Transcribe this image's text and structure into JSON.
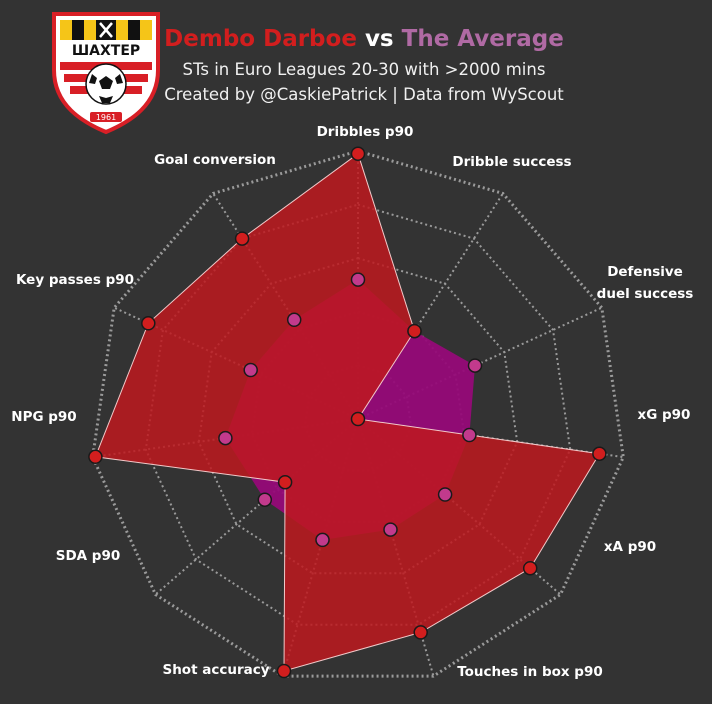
{
  "header": {
    "player_name": "Dembo Darboe",
    "vs_label": "vs",
    "comparison_name": "The Average",
    "subtitle": "STs in Euro Leagues 20-30 with >2000 mins",
    "credit": "Created by @CaskiePatrick | Data from WyScout"
  },
  "logo": {
    "name": "ШАХТЕР",
    "year": "1961"
  },
  "colors": {
    "background": "#333333",
    "player": "#d21e1e",
    "average": "#c23a8c",
    "player_fill": "rgba(190,25,30,0.85)",
    "average_fill": "rgba(150,10,120,0.95)",
    "grid": "#9a9a9a"
  },
  "chart_data": {
    "type": "radar",
    "title": "Dembo Darboe vs The Average",
    "axes": [
      "Dribbles p90",
      "Dribble success",
      "Defensive\nduel success",
      "xG p90",
      "xA p90",
      "Touches in box p90",
      "Shot accuracy",
      "SDA p90",
      "NPG p90",
      "Key passes p90",
      "Goal conversion"
    ],
    "range": [
      0,
      1
    ],
    "rings": 5,
    "grid": true,
    "series": [
      {
        "name": "Dembo Darboe",
        "values": [
          0.99,
          0.39,
          0.0,
          0.91,
          0.85,
          0.83,
          0.98,
          0.36,
          0.99,
          0.86,
          0.8
        ]
      },
      {
        "name": "The Average",
        "values": [
          0.52,
          0.39,
          0.48,
          0.42,
          0.43,
          0.43,
          0.47,
          0.46,
          0.5,
          0.44,
          0.44
        ]
      }
    ]
  }
}
